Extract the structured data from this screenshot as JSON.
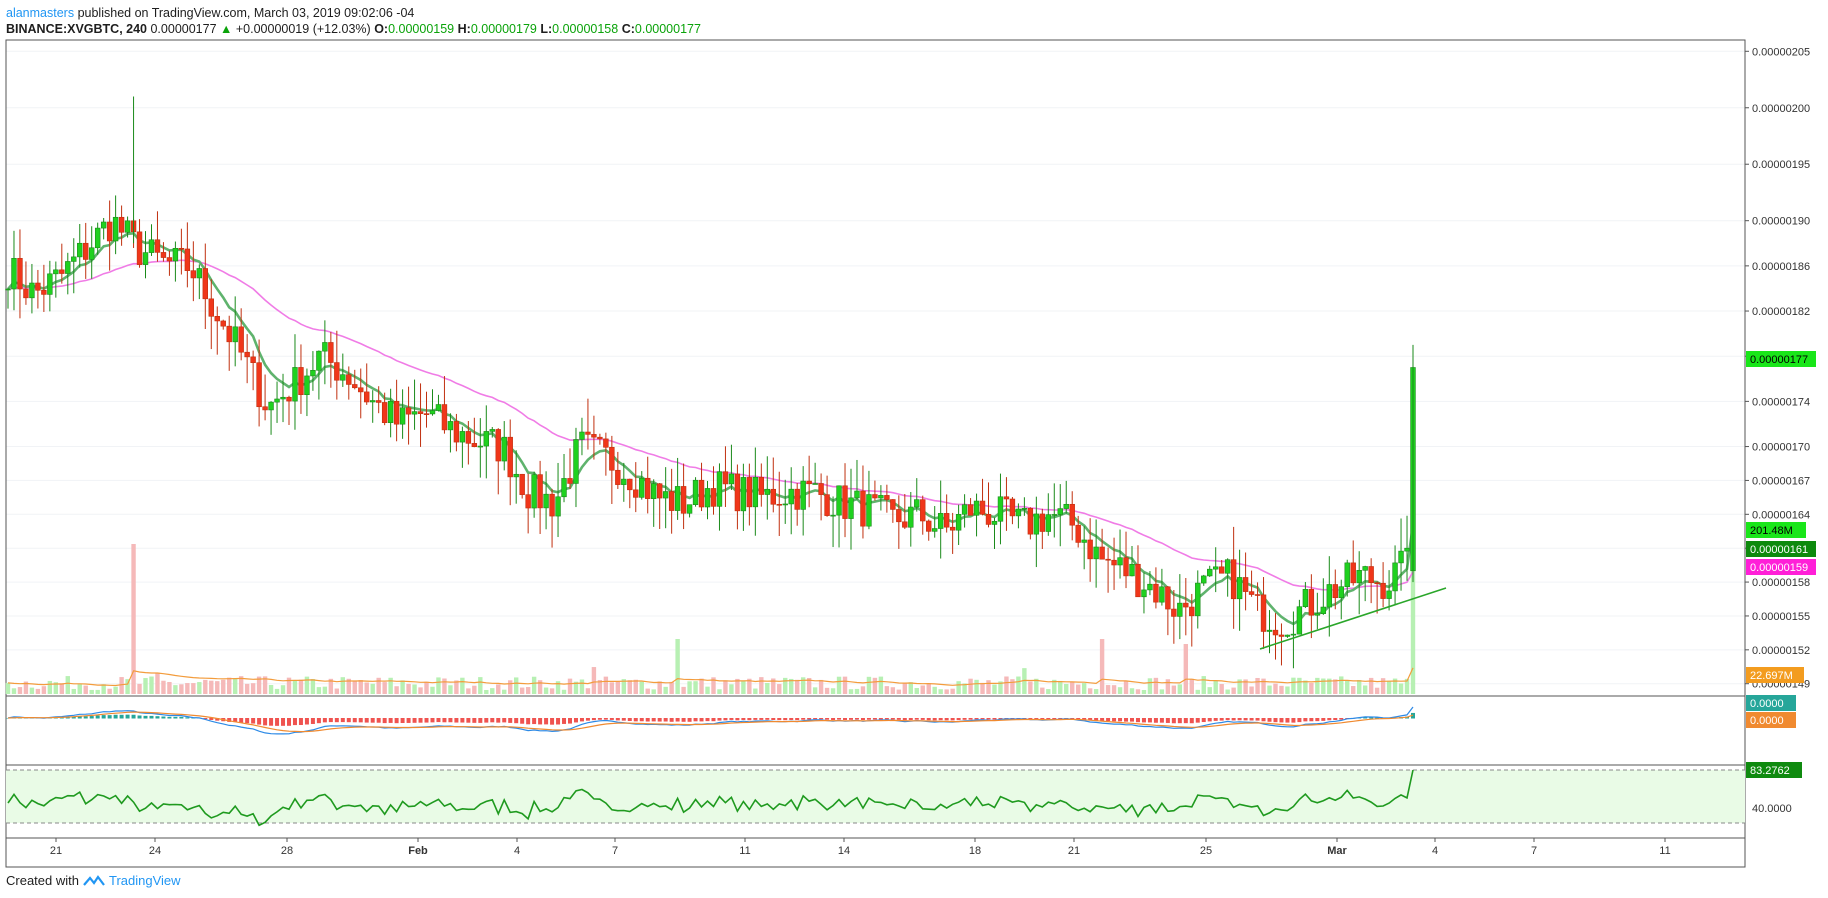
{
  "header": {
    "author": "alanmasters",
    "published_text": "published on TradingView.com, March 03, 2019 09:02:06 -04"
  },
  "ohlc": {
    "symbol": "BINANCE:XVGBTC, 240",
    "last": "0.00000177",
    "change": "+0.00000019 (+12.03%)",
    "o_label": "O:",
    "o": "0.00000159",
    "h_label": "H:",
    "h": "0.00000179",
    "l_label": "L:",
    "l": "0.00000158",
    "c_label": "C:",
    "c": "0.00000177"
  },
  "footer": {
    "created_with": "Created with",
    "brand": "TradingView"
  },
  "colors": {
    "up": "#1fd11f",
    "down": "#f0361a",
    "ema_fast": "#5fb36d",
    "ema_slow": "#f07ce6",
    "vol_up": "#b7f0b3",
    "vol_down": "#f5b9b9",
    "vol_ma": "#f39c3c",
    "macd": "#2d8ae6",
    "signal": "#f08a30",
    "hist_up": "#26a69a",
    "hist_down": "#ef5350",
    "rsi": "#1f9a1f",
    "rsi_fill": "#e9fbe6",
    "trendline": "#2aa62a"
  },
  "chart_data": [
    {
      "type": "candlestick",
      "panel": "price",
      "y_ticks": [
        "0.00000205",
        "0.00000200",
        "0.00000195",
        "0.00000190",
        "0.00000186",
        "0.00000182",
        "0.00000178",
        "0.00000174",
        "0.00000170",
        "0.00000167",
        "0.00000164",
        "0.00000161",
        "0.00000158",
        "0.00000155",
        "0.00000152",
        "0.00000149"
      ],
      "ylim": [
        1.48e-06,
        2.06e-06
      ],
      "x_ticks": [
        "21",
        "24",
        "28",
        "Feb",
        "4",
        "7",
        "11",
        "14",
        "18",
        "21",
        "25",
        "Mar",
        "4",
        "7",
        "11"
      ],
      "price_labels": {
        "last": "0.00000177",
        "ema_fast": "0.00000161",
        "ema_slow": "0.00000159",
        "volume": "201.48M",
        "volume_ma": "22.697M"
      },
      "series": [
        {
          "name": "XVGBTC",
          "anchor_closes": [
            1.857,
            1.835,
            1.85,
            1.875,
            1.9,
            1.875,
            1.862,
            1.86,
            1.82,
            1.78,
            1.735,
            1.755,
            1.78,
            1.765,
            1.74,
            1.72,
            1.73,
            1.715,
            1.705,
            1.7,
            1.66,
            1.65,
            1.7,
            1.69,
            1.675,
            1.655,
            1.65,
            1.665,
            1.66,
            1.655,
            1.66,
            1.66,
            1.65,
            1.645,
            1.635,
            1.64,
            1.625,
            1.645,
            1.64,
            1.63,
            1.64,
            1.63,
            1.6,
            1.59,
            1.575,
            1.555,
            1.575,
            1.585,
            1.555,
            1.545,
            1.56,
            1.575,
            1.585,
            1.58,
            1.6,
            1.77
          ]
        }
      ]
    },
    {
      "type": "bar",
      "panel": "volume"
    },
    {
      "type": "line",
      "panel": "macd",
      "value_labels": {
        "macd": "0.0000",
        "signal": "0.0000"
      }
    },
    {
      "type": "line",
      "panel": "rsi",
      "y_ticks": [
        "40.0000"
      ],
      "value_labels": {
        "rsi": "83.2762"
      }
    }
  ]
}
